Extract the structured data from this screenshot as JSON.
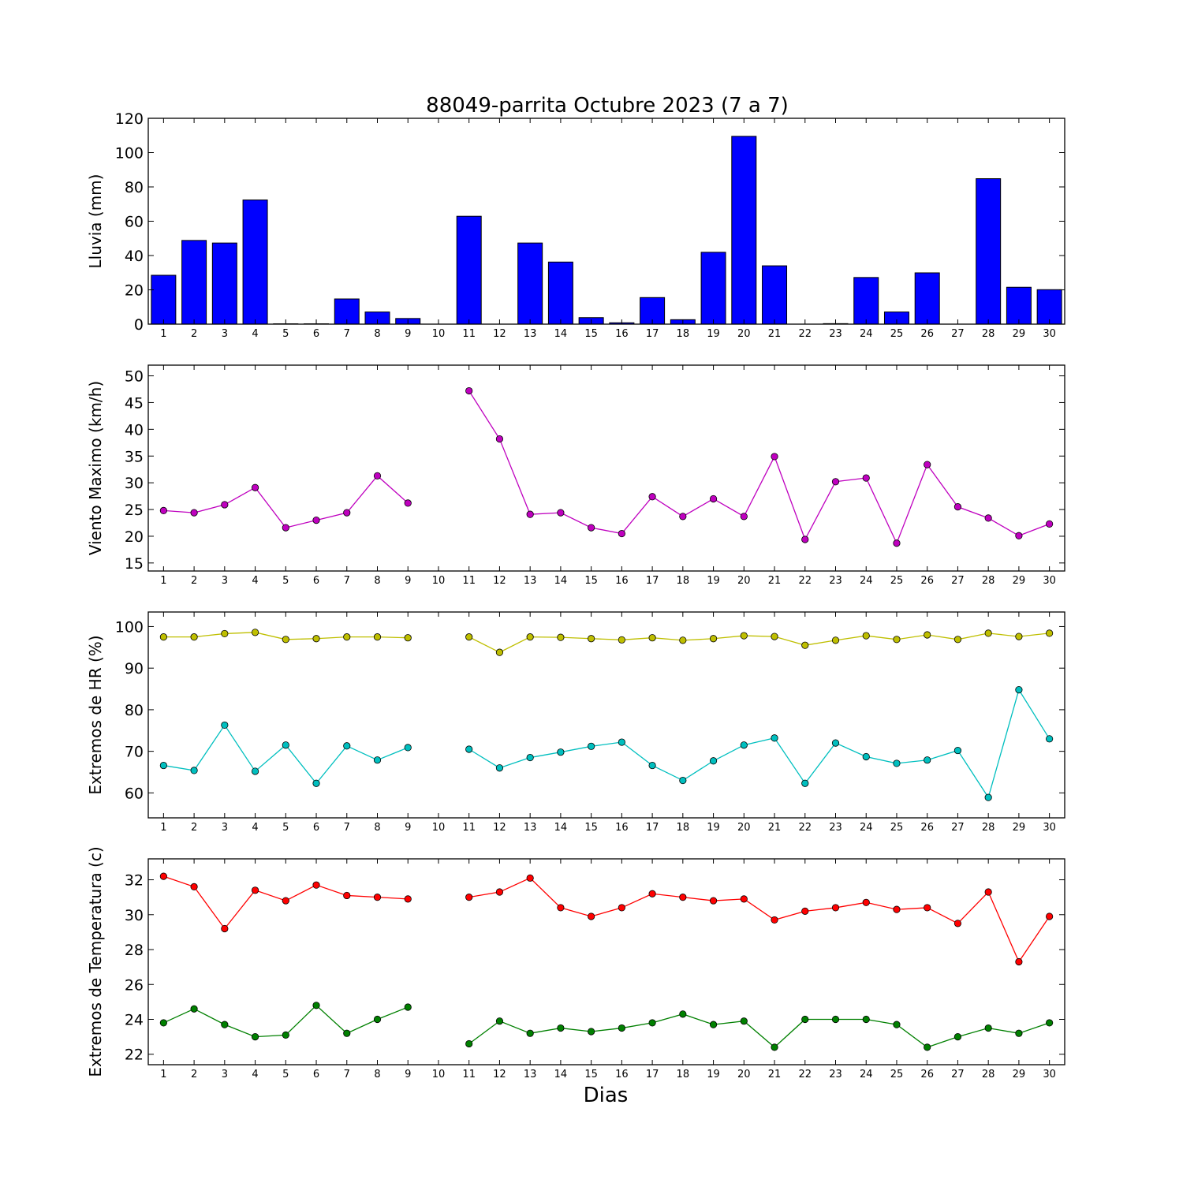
{
  "title": "88049-parrita Octubre 2023  (7 a 7)",
  "xlabel": "Dias",
  "chart_data": [
    {
      "type": "bar",
      "ylabel": "Lluvia (mm)",
      "ylim": [
        0,
        120
      ],
      "yticks": [
        0,
        20,
        40,
        60,
        80,
        100,
        120
      ],
      "categories": [
        1,
        2,
        3,
        4,
        5,
        6,
        7,
        8,
        9,
        10,
        11,
        12,
        13,
        14,
        15,
        16,
        17,
        18,
        19,
        20,
        21,
        22,
        23,
        24,
        25,
        26,
        27,
        28,
        29,
        30
      ],
      "series": [
        {
          "color": "#0000ff",
          "values": [
            28.5,
            48.8,
            47.3,
            72.4,
            0.2,
            0.2,
            14.7,
            7.1,
            3.3,
            0,
            62.9,
            0,
            47.3,
            36.2,
            3.8,
            0.8,
            15.5,
            2.6,
            41.9,
            109.5,
            34.0,
            0,
            0.3,
            27.2,
            7.1,
            29.9,
            0,
            84.8,
            21.5,
            20.1
          ]
        }
      ]
    },
    {
      "type": "line",
      "ylabel": "Viento Maximo (km/h)",
      "ylim": [
        13.5,
        52
      ],
      "yticks": [
        15,
        20,
        25,
        30,
        35,
        40,
        45,
        50
      ],
      "x": [
        1,
        2,
        3,
        4,
        5,
        6,
        7,
        8,
        9,
        10,
        11,
        12,
        13,
        14,
        15,
        16,
        17,
        18,
        19,
        20,
        21,
        22,
        23,
        24,
        25,
        26,
        27,
        28,
        29,
        30
      ],
      "series": [
        {
          "color": "#bf00bf",
          "values": [
            24.8,
            24.4,
            25.9,
            29.1,
            21.6,
            23.0,
            24.4,
            31.3,
            26.2,
            null,
            47.2,
            38.2,
            24.1,
            24.4,
            21.6,
            20.5,
            27.4,
            23.7,
            27.0,
            23.7,
            34.9,
            19.4,
            30.2,
            30.9,
            18.7,
            33.4,
            25.5,
            23.4,
            20.1,
            22.3
          ]
        }
      ]
    },
    {
      "type": "line",
      "ylabel": "Extremos de HR (%)",
      "ylim": [
        54,
        103.5
      ],
      "yticks": [
        60,
        70,
        80,
        90,
        100
      ],
      "x": [
        1,
        2,
        3,
        4,
        5,
        6,
        7,
        8,
        9,
        10,
        11,
        12,
        13,
        14,
        15,
        16,
        17,
        18,
        19,
        20,
        21,
        22,
        23,
        24,
        25,
        26,
        27,
        28,
        29,
        30
      ],
      "series": [
        {
          "color": "#bfbf00",
          "values": [
            97.5,
            97.5,
            98.3,
            98.6,
            96.9,
            97.1,
            97.5,
            97.5,
            97.3,
            null,
            97.5,
            93.8,
            97.5,
            97.4,
            97.1,
            96.8,
            97.3,
            96.7,
            97.1,
            97.8,
            97.6,
            95.5,
            96.7,
            97.8,
            96.9,
            98.0,
            96.9,
            98.4,
            97.6,
            98.4
          ]
        },
        {
          "color": "#00bfbf",
          "values": [
            66.6,
            65.4,
            76.3,
            65.2,
            71.5,
            62.3,
            71.3,
            67.9,
            70.9,
            null,
            70.5,
            66.0,
            68.5,
            69.8,
            71.2,
            72.2,
            66.6,
            63.0,
            67.7,
            71.5,
            73.2,
            62.3,
            72.0,
            68.7,
            67.1,
            67.9,
            70.2,
            58.9,
            84.8,
            73.0
          ]
        }
      ]
    },
    {
      "type": "line",
      "ylabel": "Extremos de Temperatura (c)",
      "ylim": [
        21.4,
        33.2
      ],
      "yticks": [
        22,
        24,
        26,
        28,
        30,
        32
      ],
      "x": [
        1,
        2,
        3,
        4,
        5,
        6,
        7,
        8,
        9,
        10,
        11,
        12,
        13,
        14,
        15,
        16,
        17,
        18,
        19,
        20,
        21,
        22,
        23,
        24,
        25,
        26,
        27,
        28,
        29,
        30
      ],
      "series": [
        {
          "color": "#ff0000",
          "values": [
            32.2,
            31.6,
            29.2,
            31.4,
            30.8,
            31.7,
            31.1,
            31.0,
            30.9,
            null,
            31.0,
            31.3,
            32.1,
            30.4,
            29.9,
            30.4,
            31.2,
            31.0,
            30.8,
            30.9,
            29.7,
            30.2,
            30.4,
            30.7,
            30.3,
            30.4,
            29.5,
            31.3,
            27.3,
            29.9
          ]
        },
        {
          "color": "#008000",
          "values": [
            23.8,
            24.6,
            23.7,
            23.0,
            23.1,
            24.8,
            23.2,
            24.0,
            24.7,
            null,
            22.6,
            23.9,
            23.2,
            23.5,
            23.3,
            23.5,
            23.8,
            24.3,
            23.7,
            23.9,
            22.4,
            24.0,
            24.0,
            24.0,
            23.7,
            22.4,
            23.0,
            23.5,
            23.2,
            23.8
          ]
        }
      ]
    }
  ]
}
